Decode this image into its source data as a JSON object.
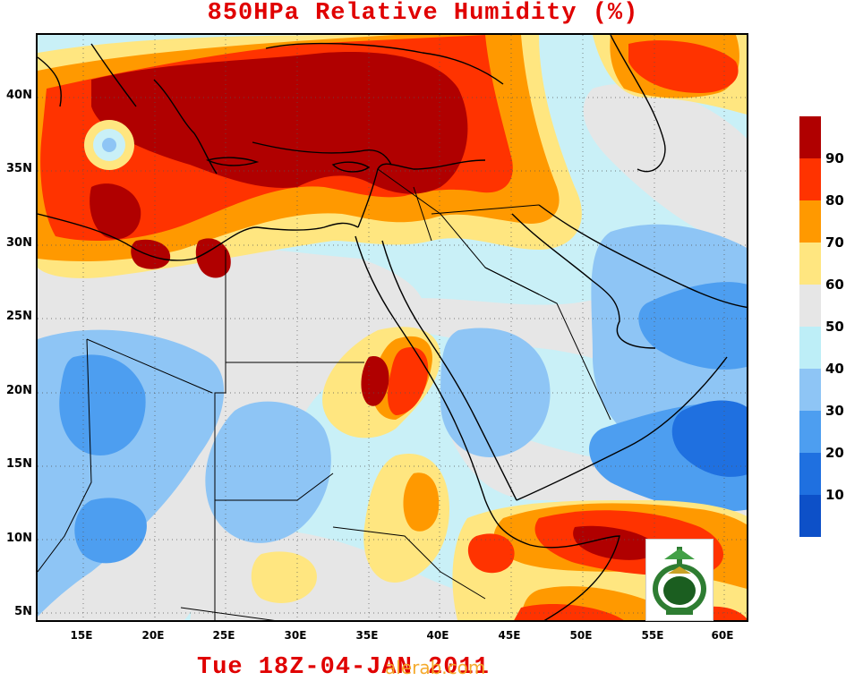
{
  "title": "850HPa Relative Humidity (%)",
  "footer": "Tue 18Z-04-JAN 2011",
  "watermark": "alerab.com",
  "lat_labels": [
    "40N",
    "35N",
    "30N",
    "25N",
    "20N",
    "15N",
    "10N",
    "5N"
  ],
  "lon_labels": [
    "15E",
    "20E",
    "25E",
    "30E",
    "35E",
    "40E",
    "45E",
    "50E",
    "55E",
    "60E"
  ],
  "legend": {
    "labels": [
      "90",
      "80",
      "70",
      "60",
      "50",
      "40",
      "30",
      "20",
      "10"
    ],
    "colors": [
      "#b00000",
      "#ff3300",
      "#ff9900",
      "#ffe680",
      "#e6e6e6",
      "#bdeef7",
      "#8ec5f5",
      "#4d9ef0",
      "#1f70e0",
      "#0d50c8"
    ]
  },
  "logo_icon": "university-seal-icon"
}
